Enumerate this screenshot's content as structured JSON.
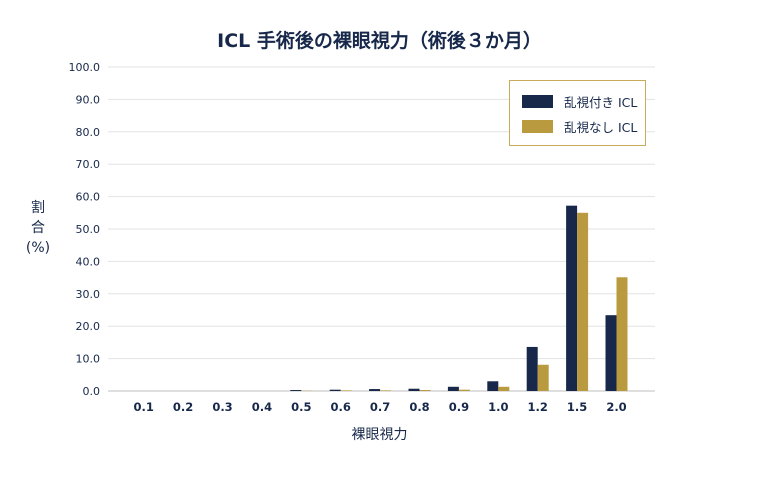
{
  "chart_data": {
    "type": "bar",
    "title": "ICL 手術後の裸眼視力（術後３か月）",
    "xlabel": "裸眼視力",
    "ylabel_lines": [
      "割",
      "合",
      "(%)"
    ],
    "categories": [
      "0.1",
      "0.2",
      "0.3",
      "0.4",
      "0.5",
      "0.6",
      "0.7",
      "0.8",
      "0.9",
      "1.0",
      "1.2",
      "1.5",
      "2.0"
    ],
    "series": [
      {
        "name": "乱視付き ICL",
        "color": "#17284a",
        "values": [
          0,
          0,
          0,
          0,
          0.3,
          0.4,
          0.6,
          0.7,
          1.3,
          3.0,
          13.6,
          57.2,
          23.4
        ]
      },
      {
        "name": "乱視なし ICL",
        "color": "#b99a3f",
        "values": [
          0,
          0,
          0,
          0,
          0.1,
          0.2,
          0.2,
          0.3,
          0.4,
          1.3,
          8.1,
          55.0,
          35.1
        ]
      }
    ],
    "yticks": [
      "0.0",
      "10.0",
      "20.0",
      "30.0",
      "40.0",
      "50.0",
      "60.0",
      "70.0",
      "80.0",
      "90.0",
      "100.0"
    ],
    "ylim": [
      0,
      100
    ],
    "grid": true,
    "legend_position": "top-right"
  }
}
